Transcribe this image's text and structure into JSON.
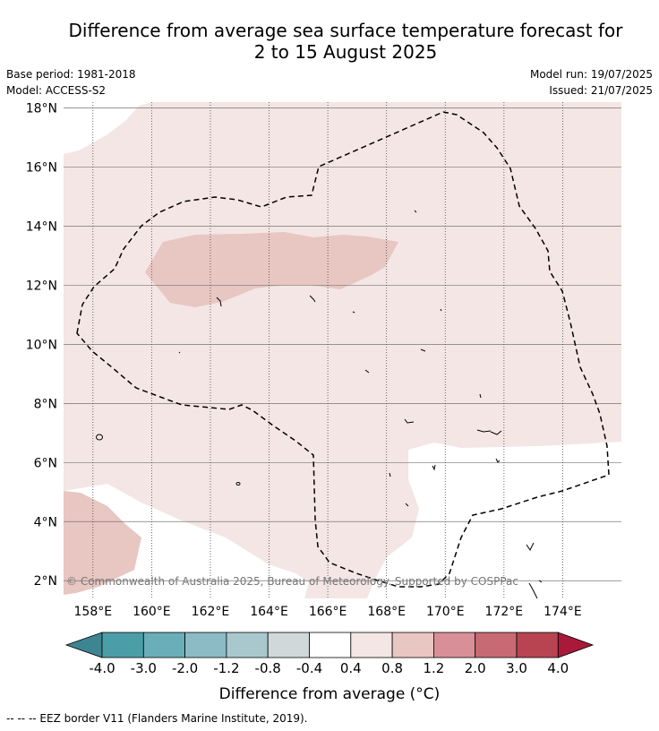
{
  "title": {
    "line1": "Difference from average sea surface temperature forecast for",
    "line2": "2 to 15 August 2025"
  },
  "meta": {
    "base_period": "Base period: 1981-2018",
    "model": "Model: ACCESS-S2",
    "model_run": "Model run: 19/07/2025",
    "issued": "Issued: 21/07/2025"
  },
  "map": {
    "lat_ticks": [
      "18°N",
      "16°N",
      "14°N",
      "12°N",
      "10°N",
      "8°N",
      "6°N",
      "4°N",
      "2°N"
    ],
    "lon_ticks": [
      "158°E",
      "160°E",
      "162°E",
      "164°E",
      "166°E",
      "168°E",
      "170°E",
      "172°E",
      "174°E"
    ],
    "lat_range": [
      1.4,
      18.2
    ],
    "lon_range": [
      157.0,
      176.0
    ],
    "copyright": "© Commonwealth of Australia 2025, Bureau of Meteorology. Supported by COSPPac",
    "colors": {
      "anomaly_0_4_to_0_8": "#f4e6e5",
      "anomaly_0_8_to_1_2": "#e8c6c2",
      "anomaly_neg0_4_to_0_4": "#ffffff"
    }
  },
  "colorbar": {
    "tick_labels": [
      "-4.0",
      "-3.0",
      "-2.0",
      "-1.2",
      "-0.8",
      "-0.4",
      "0.4",
      "0.8",
      "1.2",
      "2.0",
      "3.0",
      "4.0"
    ],
    "colors": [
      "#4b9ea8",
      "#6aaeb9",
      "#8cbbc6",
      "#a8c8cd",
      "#d0d8da",
      "#ffffff",
      "#f4e6e5",
      "#e8c6c2",
      "#d88f98",
      "#c86a74",
      "#b84452"
    ],
    "under_color": "#3e8592",
    "over_color": "#a8193a",
    "label": "Difference from average (°C)"
  },
  "footer": {
    "legend_text": "--  --  -- EEZ border V11 (Flanders Marine Institute, 2019)."
  }
}
